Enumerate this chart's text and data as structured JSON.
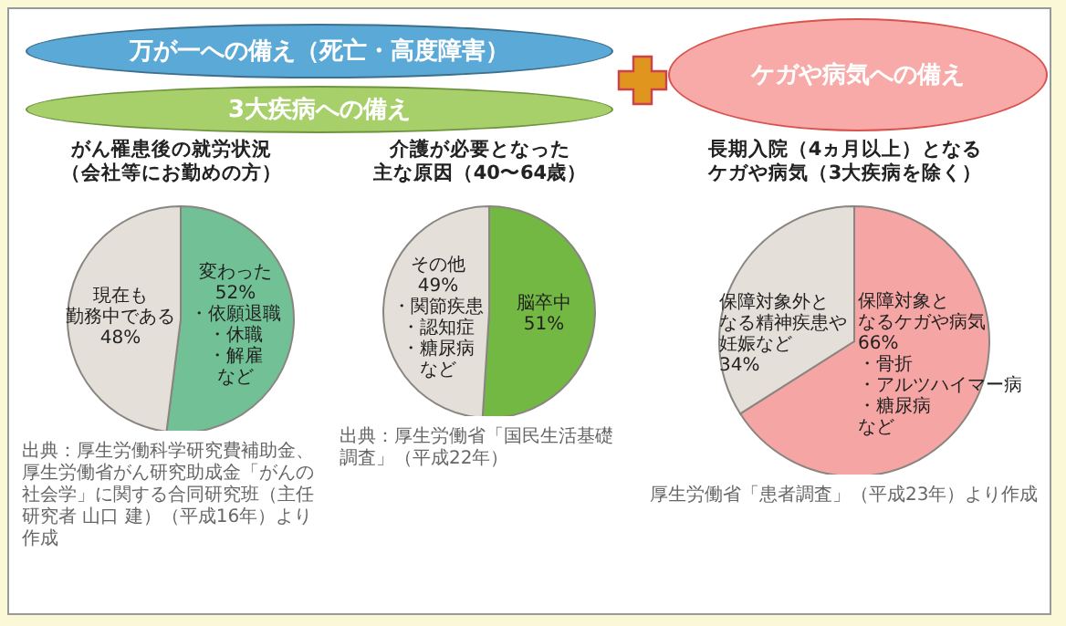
{
  "chart_data": [
    {
      "type": "pie",
      "title": "がん罹患後の就労状況（会社等にお勤めの方）",
      "categories": [
        "変わった",
        "現在も勤務中である"
      ],
      "values": [
        52,
        48
      ],
      "value_labels": [
        "52%",
        "48%"
      ],
      "colors": [
        "#72c196",
        "#e4dfd9"
      ],
      "annotations": [
        "万が一への備え（死亡・高度障害）",
        "3大疾病への備え",
        "・依願退職・休職・解雇など",
        "出典：厚生労働科学研究費補助金、厚生労働省がん研究助成金「がんの社会学」に関する合同研究班（主任研究者 山口 建）（平成16年）より作成"
      ]
    },
    {
      "type": "pie",
      "title": "介護が必要となった主な原因（40〜64歳）",
      "categories": [
        "脳卒中",
        "その他"
      ],
      "values": [
        51,
        49
      ],
      "value_labels": [
        "51%",
        "49%"
      ],
      "colors": [
        "#72b843",
        "#e4dfd9"
      ],
      "annotations": [
        "・関節疾患・認知症・糖尿病など",
        "出典：厚生労働省「国民生活基礎調査」（平成22年）"
      ]
    },
    {
      "type": "pie",
      "title": "長期入院（4ヵ月以上）となるケガや病気（3大疾病を除く）",
      "categories": [
        "保障対象となるケガや病気",
        "保障対象外となる精神疾患や妊娠など"
      ],
      "values": [
        66,
        34
      ],
      "value_labels": [
        "66%",
        "34%"
      ],
      "colors": [
        "#f5a5a3",
        "#e4dfd9"
      ],
      "annotations": [
        "ケガや病気への備え",
        "・骨折・アルツハイマー病・糖尿病など",
        "厚生労働省「患者調査」（平成23年）より作成"
      ]
    }
  ]
}
